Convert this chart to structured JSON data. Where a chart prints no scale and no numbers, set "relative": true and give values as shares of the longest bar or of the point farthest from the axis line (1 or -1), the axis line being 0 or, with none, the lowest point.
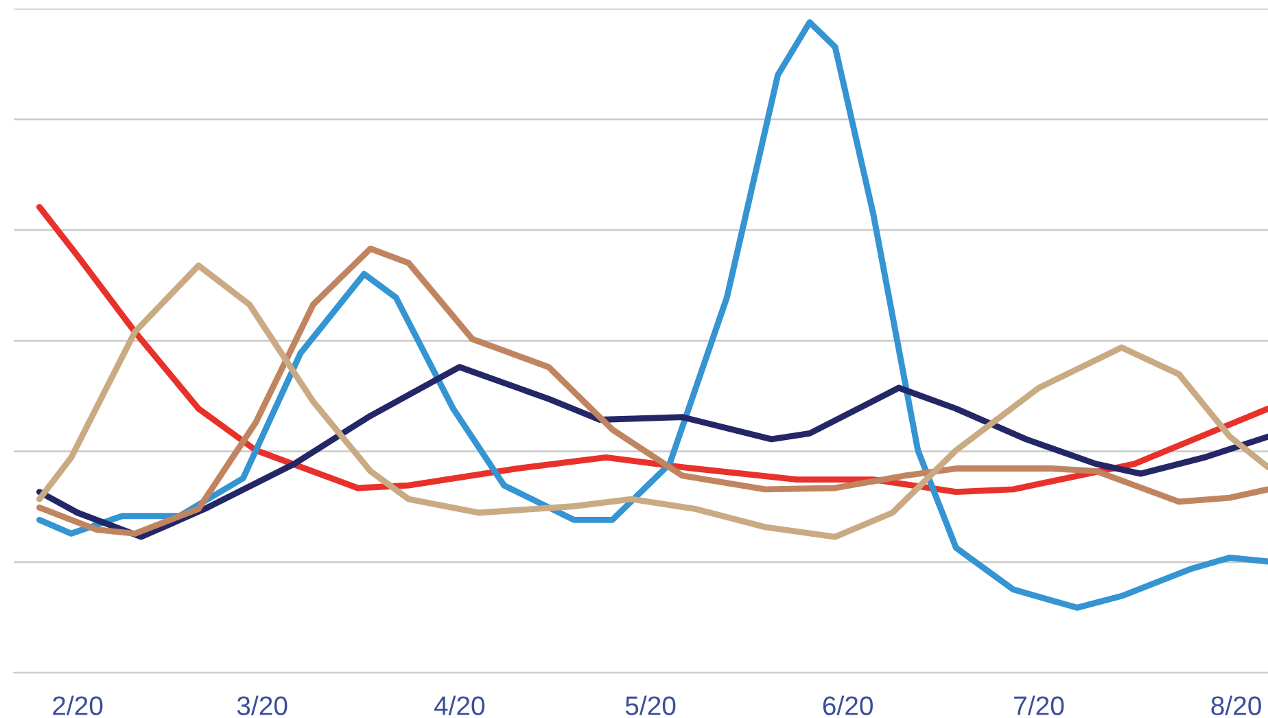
{
  "chart_data": {
    "type": "line",
    "relative": true,
    "grid": "y",
    "line_style": "solid",
    "marker": "none",
    "xlim": [
      "2020-01-22",
      "2020-08-06"
    ],
    "xticks": [
      {
        "value": "2020-02-01",
        "label": "2/20"
      },
      {
        "value": "2020-03-01",
        "label": "3/20"
      },
      {
        "value": "2020-04-01",
        "label": "4/20"
      },
      {
        "value": "2020-05-01",
        "label": "5/20"
      },
      {
        "value": "2020-06-01",
        "label": "6/20"
      },
      {
        "value": "2020-07-01",
        "label": "7/20"
      },
      {
        "value": "2020-08-01",
        "label": "8/20"
      }
    ],
    "series": [
      {
        "color": "#e8312a",
        "x": [
          "2020-01-26",
          "2020-02-01",
          "2020-02-10",
          "2020-02-20",
          "2020-02-29",
          "2020-03-16",
          "2020-03-24",
          "2020-04-10",
          "2020-04-24",
          "2020-05-06",
          "2020-05-24",
          "2020-06-05",
          "2020-06-18",
          "2020-06-27",
          "2020-07-16",
          "2020-08-06"
        ],
        "values": [
          0.716,
          0.641,
          0.524,
          0.406,
          0.342,
          0.284,
          0.288,
          0.314,
          0.331,
          0.316,
          0.297,
          0.297,
          0.278,
          0.282,
          0.321,
          0.406
        ]
      },
      {
        "color": "#3594d2",
        "x": [
          "2020-01-26",
          "2020-01-31",
          "2020-02-08",
          "2020-02-17",
          "2020-02-27",
          "2020-03-07",
          "2020-03-17",
          "2020-03-22",
          "2020-03-31",
          "2020-04-08",
          "2020-04-19",
          "2020-04-25",
          "2020-05-04",
          "2020-05-13",
          "2020-05-21",
          "2020-05-26",
          "2020-05-30",
          "2020-06-05",
          "2020-06-12",
          "2020-06-18",
          "2020-06-27",
          "2020-07-07",
          "2020-07-14",
          "2020-07-25",
          "2020-07-31",
          "2020-08-06"
        ],
        "values": [
          0.235,
          0.214,
          0.241,
          0.241,
          0.299,
          0.491,
          0.613,
          0.577,
          0.406,
          0.288,
          0.235,
          0.235,
          0.321,
          0.577,
          0.919,
          1.0,
          0.962,
          0.705,
          0.342,
          0.192,
          0.128,
          0.1,
          0.118,
          0.16,
          0.177,
          0.171
        ]
      },
      {
        "color": "#232766",
        "x": [
          "2020-01-26",
          "2020-02-01",
          "2020-02-11",
          "2020-02-21",
          "2020-03-06",
          "2020-03-18",
          "2020-04-01",
          "2020-04-15",
          "2020-04-23",
          "2020-05-06",
          "2020-05-20",
          "2020-05-26",
          "2020-06-09",
          "2020-06-18",
          "2020-06-29",
          "2020-07-10",
          "2020-07-17",
          "2020-07-27",
          "2020-08-06"
        ],
        "values": [
          0.278,
          0.246,
          0.209,
          0.252,
          0.321,
          0.395,
          0.47,
          0.421,
          0.389,
          0.393,
          0.359,
          0.368,
          0.438,
          0.406,
          0.359,
          0.321,
          0.306,
          0.331,
          0.363
        ]
      },
      {
        "color": "#c08560",
        "x": [
          "2020-01-26",
          "2020-02-04",
          "2020-02-10",
          "2020-02-20",
          "2020-02-29",
          "2020-03-09",
          "2020-03-18",
          "2020-03-24",
          "2020-04-03",
          "2020-04-15",
          "2020-04-25",
          "2020-05-06",
          "2020-05-19",
          "2020-05-30",
          "2020-06-10",
          "2020-06-18",
          "2020-07-03",
          "2020-07-10",
          "2020-07-23",
          "2020-07-31",
          "2020-08-06"
        ],
        "values": [
          0.254,
          0.22,
          0.214,
          0.252,
          0.385,
          0.566,
          0.652,
          0.63,
          0.513,
          0.47,
          0.374,
          0.303,
          0.282,
          0.284,
          0.303,
          0.314,
          0.314,
          0.31,
          0.263,
          0.269,
          0.282
        ]
      },
      {
        "color": "#c9aa83",
        "x": [
          "2020-01-26",
          "2020-01-31",
          "2020-02-10",
          "2020-02-20",
          "2020-02-28",
          "2020-03-09",
          "2020-03-18",
          "2020-03-24",
          "2020-04-04",
          "2020-04-19",
          "2020-04-28",
          "2020-05-08",
          "2020-05-19",
          "2020-05-30",
          "2020-06-08",
          "2020-06-18",
          "2020-07-01",
          "2020-07-14",
          "2020-07-23",
          "2020-07-31",
          "2020-08-06"
        ],
        "values": [
          0.267,
          0.331,
          0.524,
          0.626,
          0.566,
          0.417,
          0.31,
          0.267,
          0.246,
          0.256,
          0.267,
          0.252,
          0.224,
          0.209,
          0.246,
          0.342,
          0.438,
          0.5,
          0.459,
          0.363,
          0.316
        ]
      }
    ]
  }
}
